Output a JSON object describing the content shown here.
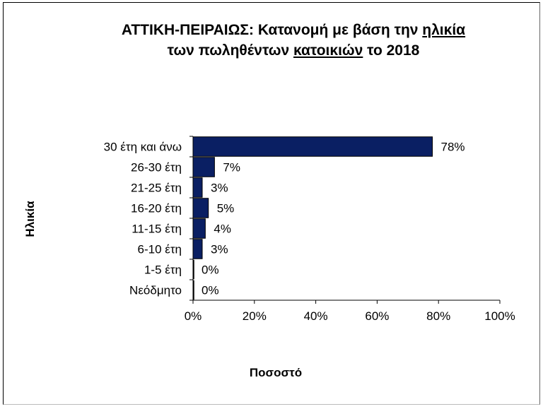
{
  "chart_data": {
    "type": "bar",
    "orientation": "horizontal",
    "title_line1_parts": [
      "ΑΤΤΙΚΗ-ΠΕΙΡΑΙΩΣ:  Κατανομή με βάση την ",
      "ηλικία"
    ],
    "title_line2_parts": [
      "των πωληθέντων ",
      "κατοικιών",
      " το 2018"
    ],
    "categories": [
      "30 έτη και άνω",
      "26-30 έτη",
      "21-25 έτη",
      "16-20 έτη",
      "11-15 έτη",
      "6-10 έτη",
      "1-5 έτη",
      "Νεόδμητο"
    ],
    "values": [
      78,
      7,
      3,
      5,
      4,
      3,
      0,
      0
    ],
    "value_labels": [
      "78%",
      "7%",
      "3%",
      "5%",
      "4%",
      "3%",
      "0%",
      "0%"
    ],
    "xticks": [
      "0%",
      "20%",
      "40%",
      "60%",
      "80%",
      "100%"
    ],
    "xlim": [
      0,
      100
    ],
    "xlabel": "Ποσοστό",
    "ylabel": "Ηλικία",
    "bar_color": "#0a1f63",
    "grid": false,
    "legend": "none"
  }
}
